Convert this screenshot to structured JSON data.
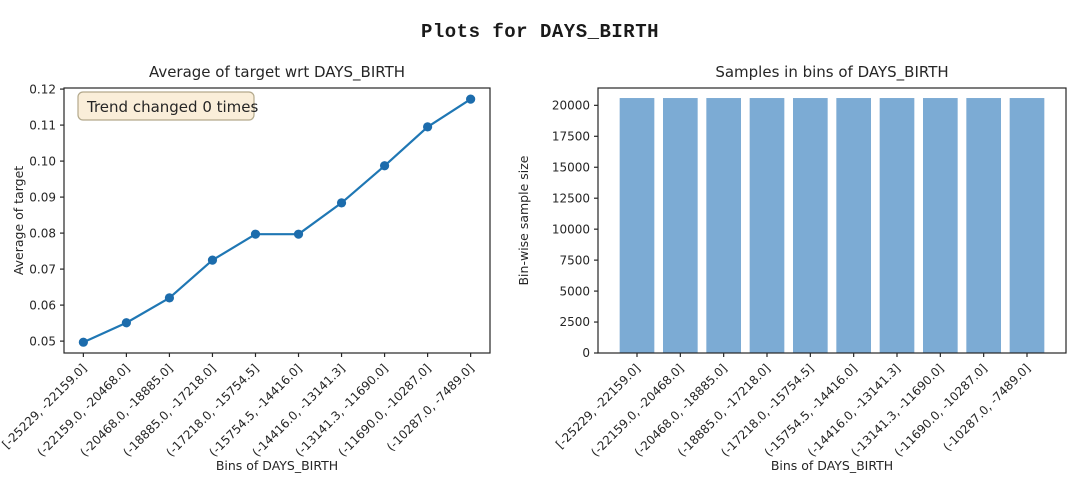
{
  "page": {
    "suptitle": "Plots for DAYS_BIRTH"
  },
  "colors": {
    "line": "#1f77b4",
    "marker": "#1c6cac",
    "bar": "#7cabd4",
    "annotation_bg": "#faeed9",
    "annotation_border": "#b3a98c",
    "text": "#262626",
    "spine": "#262626",
    "background": "#ffffff"
  },
  "chart_data": [
    {
      "type": "line",
      "title": "Average of target wrt DAYS_BIRTH",
      "xlabel": "Bins of DAYS_BIRTH",
      "ylabel": "Average of target",
      "categories": [
        "[-25229, -22159.0]",
        "(-22159.0, -20468.0]",
        "(-20468.0, -18885.0]",
        "(-18885.0, -17218.0]",
        "(-17218.0, -15754.5]",
        "(-15754.5, -14416.0]",
        "(-14416.0, -13141.3]",
        "(-13141.3, -11690.0]",
        "(-11690.0, -10287.0]",
        "(-10287.0, -7489.0]"
      ],
      "values": [
        0.0497,
        0.0551,
        0.062,
        0.0725,
        0.0797,
        0.0797,
        0.0884,
        0.0987,
        0.1095,
        0.1172
      ],
      "yticks": [
        0.05,
        0.06,
        0.07,
        0.08,
        0.09,
        0.1,
        0.11,
        0.12
      ],
      "ytick_labels": [
        "0.05",
        "0.06",
        "0.07",
        "0.08",
        "0.09",
        "0.10",
        "0.11",
        "0.12"
      ],
      "ylim": [
        0.0467,
        0.1203
      ],
      "annotation": "Trend changed 0 times",
      "grid": false,
      "legend": null
    },
    {
      "type": "bar",
      "title": "Samples in bins of DAYS_BIRTH",
      "xlabel": "Bins of DAYS_BIRTH",
      "ylabel": "Bin-wise sample size",
      "categories": [
        "[-25229, -22159.0]",
        "(-22159.0, -20468.0]",
        "(-20468.0, -18885.0]",
        "(-18885.0, -17218.0]",
        "(-17218.0, -15754.5]",
        "(-15754.5, -14416.0]",
        "(-14416.0, -13141.3]",
        "(-13141.3, -11690.0]",
        "(-11690.0, -10287.0]",
        "(-10287.0, -7489.0]"
      ],
      "values": [
        20590,
        20590,
        20590,
        20590,
        20590,
        20590,
        20590,
        20590,
        20590,
        20590
      ],
      "yticks": [
        0,
        2500,
        5000,
        7500,
        10000,
        12500,
        15000,
        17500,
        20000
      ],
      "ytick_labels": [
        "0",
        "2500",
        "5000",
        "7500",
        "10000",
        "12500",
        "15000",
        "17500",
        "20000"
      ],
      "ylim": [
        0,
        21400
      ],
      "annotation": null,
      "grid": false,
      "legend": null
    }
  ]
}
